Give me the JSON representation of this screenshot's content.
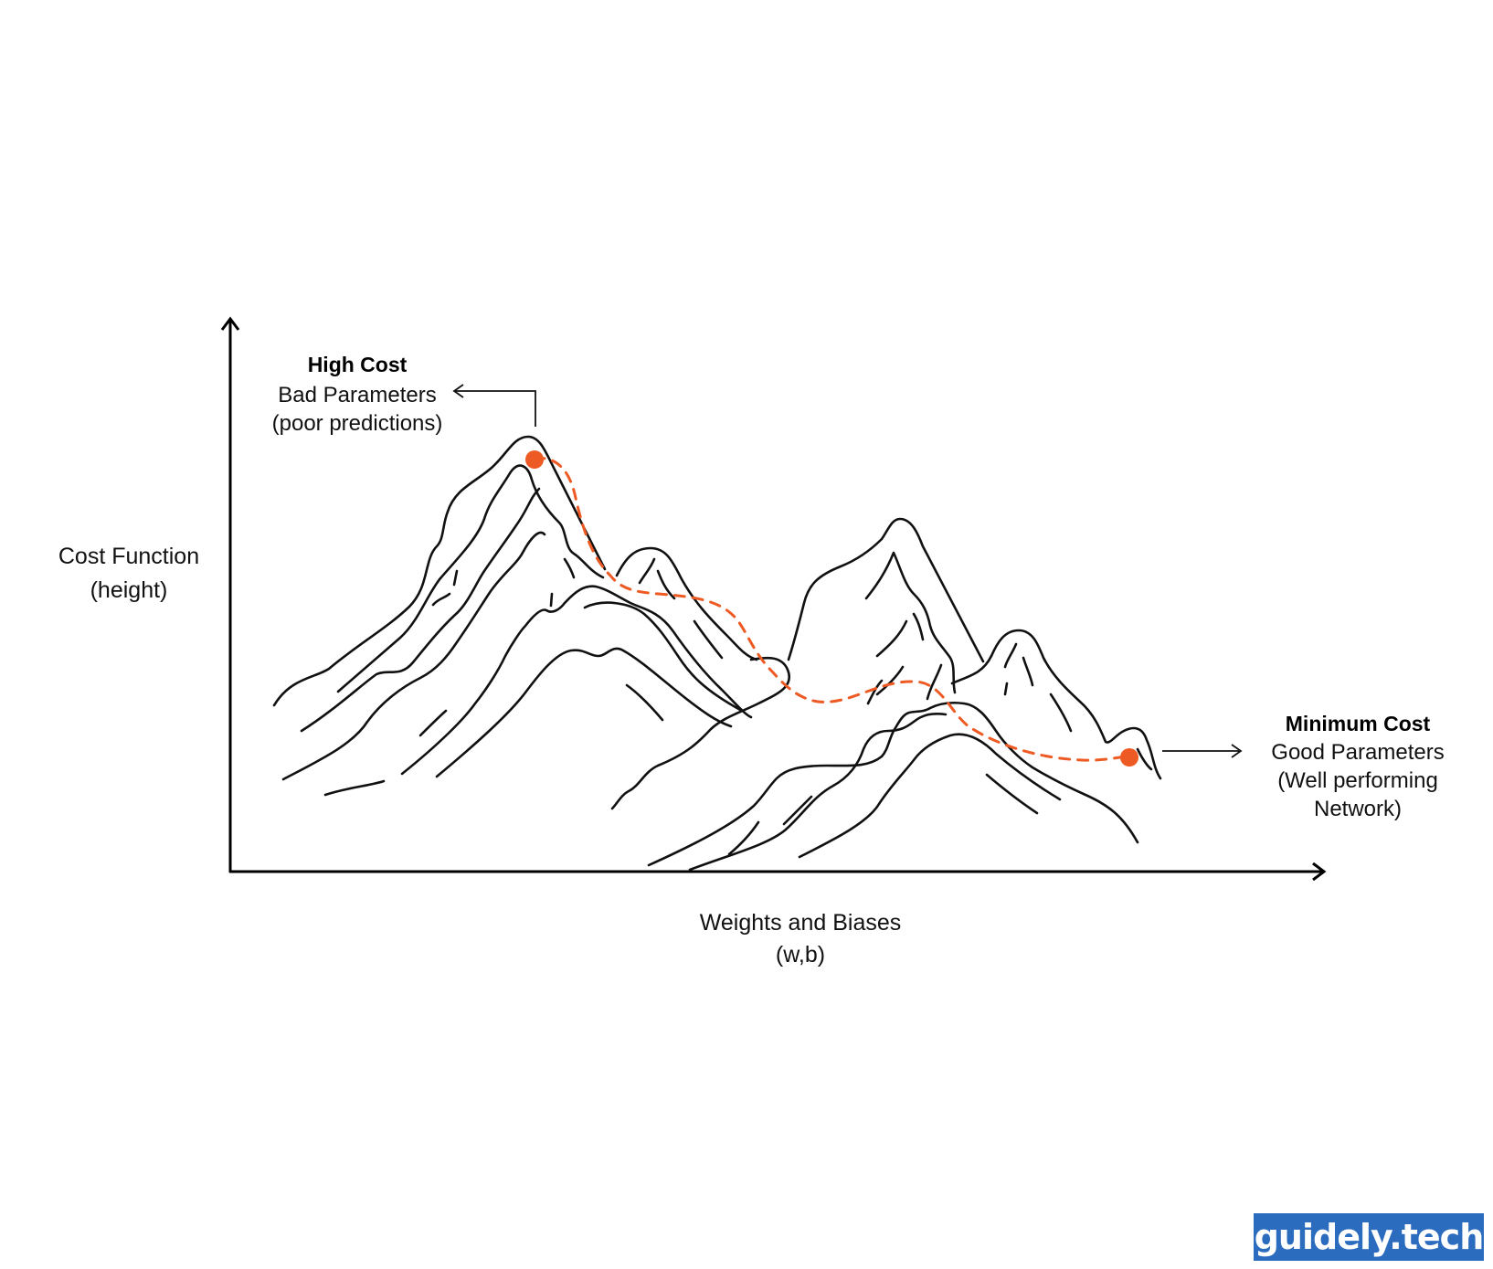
{
  "axes": {
    "y_label_line1": "Cost Function",
    "y_label_line2": "(height)",
    "x_label_line1": "Weights and Biases",
    "x_label_line2": "(w,b)"
  },
  "high_cost": {
    "title": "High Cost",
    "line1": "Bad Parameters",
    "line2": "(poor predictions)"
  },
  "minimum_cost": {
    "title": "Minimum Cost",
    "line1": "Good Parameters",
    "line2": "(Well performing",
    "line3": "Network)"
  },
  "logo": {
    "text": "guidely.tech"
  },
  "colors": {
    "path": "#ee5a24",
    "ink": "#111111",
    "logo_bg": "#2c6cbf"
  }
}
